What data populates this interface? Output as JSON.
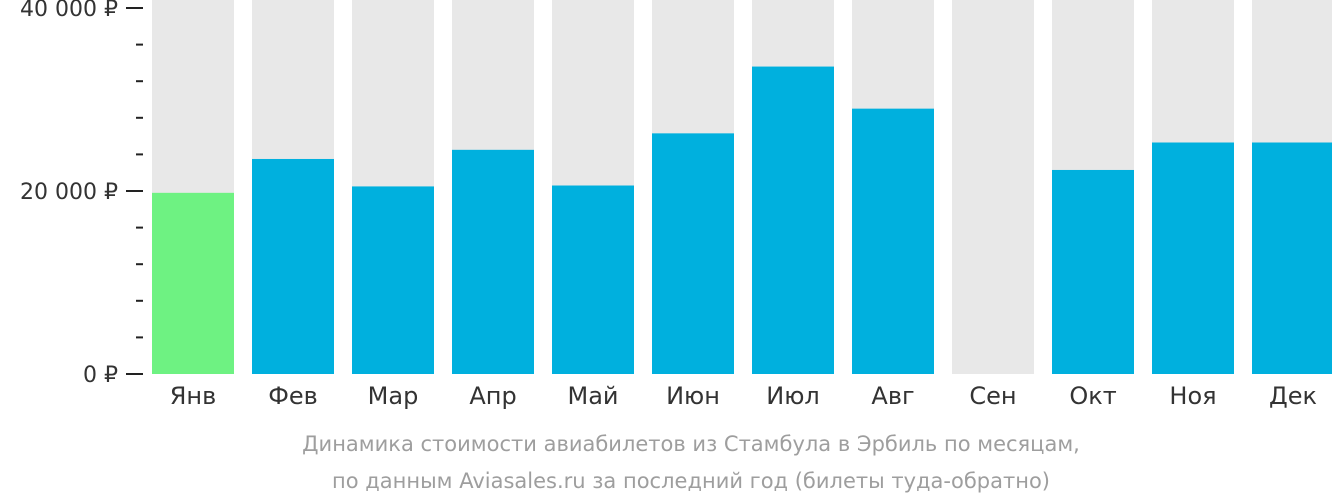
{
  "chart_data": {
    "type": "bar",
    "categories": [
      "Янв",
      "Фев",
      "Мар",
      "Апр",
      "Май",
      "Июн",
      "Июл",
      "Авг",
      "Сен",
      "Окт",
      "Ноя",
      "Дек"
    ],
    "values": [
      19800,
      23500,
      20500,
      24500,
      20600,
      26300,
      33600,
      29000,
      null,
      22300,
      25300,
      25300
    ],
    "highlight_index": 0,
    "ylim": [
      0,
      40000
    ],
    "y_tick_labels": [
      {
        "value": 0,
        "label": "0 ₽"
      },
      {
        "value": 20000,
        "label": "20 000 ₽"
      },
      {
        "value": 40000,
        "label": "40 000 ₽"
      }
    ],
    "y_minor_step": 4000,
    "colors": {
      "bar": "#00b0de",
      "highlight": "#6ef282",
      "background_bar": "#e8e8e8",
      "axis": "#222222",
      "text": "#333333"
    }
  },
  "caption": {
    "line1": "Динамика стоимости авиабилетов из Стамбула в Эрбиль по месяцам,",
    "line2": "по данным Aviasales.ru за последний год (билеты туда-обратно)"
  }
}
